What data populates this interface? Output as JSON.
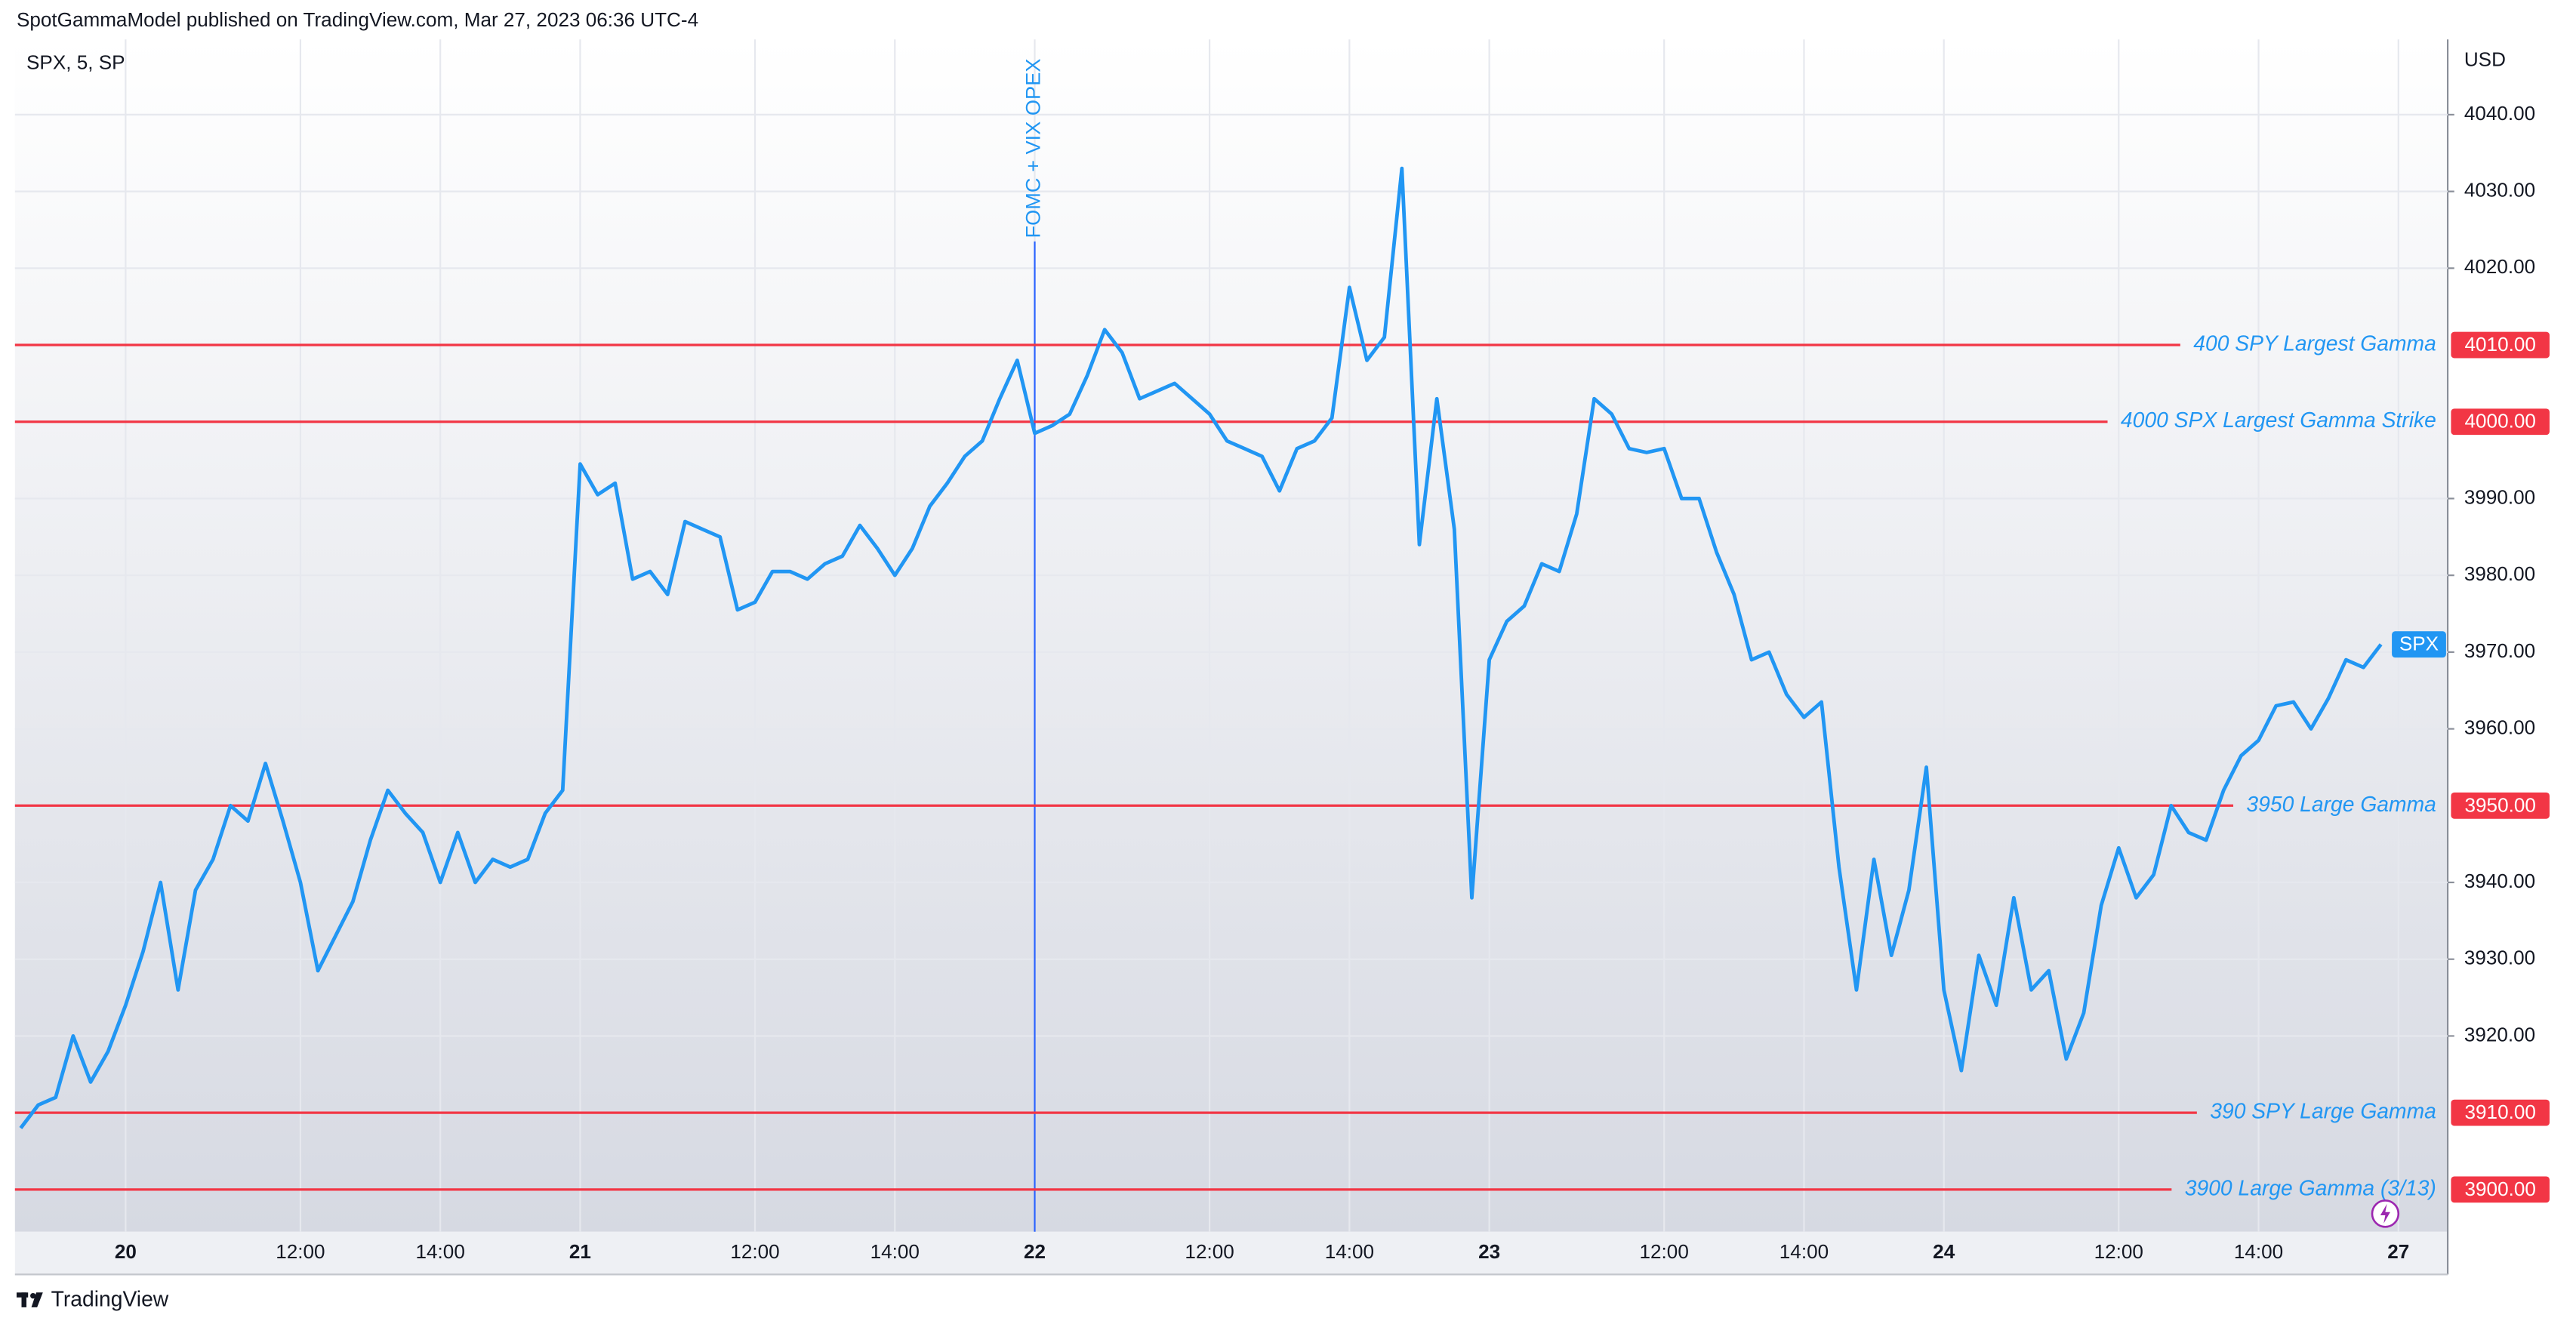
{
  "header": {
    "published": "SpotGammaModel published on TradingView.com, Mar 27, 2023 06:36 UTC-4"
  },
  "footer": {
    "brand": "TradingView"
  },
  "chart_data": {
    "type": "line",
    "title": "SPX, 5, SP",
    "y_unit": "USD",
    "categories": [
      null,
      null,
      null,
      null,
      null,
      null,
      "20",
      null,
      null,
      null,
      null,
      null,
      null,
      null,
      null,
      null,
      "12:00",
      null,
      null,
      null,
      null,
      null,
      null,
      null,
      "14:00",
      null,
      null,
      null,
      null,
      null,
      null,
      null,
      "21",
      null,
      null,
      null,
      null,
      null,
      null,
      null,
      null,
      null,
      "12:00",
      null,
      null,
      null,
      null,
      null,
      null,
      null,
      "14:00",
      null,
      null,
      null,
      null,
      null,
      null,
      null,
      "22",
      null,
      null,
      null,
      null,
      null,
      null,
      null,
      null,
      null,
      "12:00",
      null,
      null,
      null,
      null,
      null,
      null,
      null,
      "14:00",
      null,
      null,
      null,
      null,
      null,
      null,
      null,
      "23",
      null,
      null,
      null,
      null,
      null,
      null,
      null,
      null,
      null,
      "12:00",
      null,
      null,
      null,
      null,
      null,
      null,
      null,
      "14:00",
      null,
      null,
      null,
      null,
      null,
      null,
      null,
      "24",
      null,
      null,
      null,
      null,
      null,
      null,
      null,
      null,
      null,
      "12:00",
      null,
      null,
      null,
      null,
      null,
      null,
      null,
      "14:00",
      null,
      null,
      null,
      null,
      null,
      null,
      null,
      "27"
    ],
    "series": [
      {
        "name": "SPX",
        "color": "#2196f3",
        "values": [
          3908,
          3911,
          3912,
          3920,
          3914,
          3918,
          3924,
          3931,
          3940,
          3926,
          3939,
          3943,
          3950,
          3948,
          3955.5,
          3948,
          3940,
          3928.5,
          3933,
          3937.5,
          3945.5,
          3952,
          3949,
          3946.5,
          3940,
          3946.5,
          3940,
          3943,
          3942,
          3943,
          3949,
          3952,
          3994.5,
          3990.5,
          3992,
          3979.5,
          3980.5,
          3977.5,
          3987,
          3986,
          3985,
          3975.5,
          3976.5,
          3980.5,
          3980.5,
          3979.5,
          3981.5,
          3982.5,
          3986.5,
          3983.5,
          3980,
          3983.5,
          3989,
          3992,
          3995.5,
          3997.5,
          4003,
          4008,
          3998.5,
          3999.5,
          4001,
          4006,
          4012,
          4009,
          4003,
          4004,
          4005,
          4003,
          4001,
          3997.5,
          3996.5,
          3995.5,
          3991,
          3996.5,
          3997.5,
          4000.5,
          4017.5,
          4008,
          4011,
          4033,
          3984,
          4003,
          3986,
          3938,
          3969,
          3974,
          3976,
          3981.5,
          3980.5,
          3988,
          4003,
          4001,
          3996.5,
          3996,
          3996.5,
          3990,
          3990,
          3983,
          3977.5,
          3969,
          3970,
          3964.5,
          3961.5,
          3963.5,
          3942,
          3926,
          3943,
          3930.5,
          3939,
          3955,
          3926,
          3915.5,
          3930.5,
          3924,
          3938,
          3926,
          3928.5,
          3917,
          3923,
          3937,
          3944.5,
          3938,
          3941,
          3950,
          3946.5,
          3945.5,
          3952,
          3956.5,
          3958.5,
          3963,
          3963.5,
          3960,
          3964,
          3969,
          3968,
          3971,
          null
        ]
      }
    ],
    "ylim": [
      3894.5,
      4049.8
    ],
    "yticks": [
      {
        "value": 3920,
        "label": "3920.00"
      },
      {
        "value": 3930,
        "label": "3930.00"
      },
      {
        "value": 3940,
        "label": "3940.00"
      },
      {
        "value": 3960,
        "label": "3960.00"
      },
      {
        "value": 3970,
        "label": "3970.00"
      },
      {
        "value": 3980,
        "label": "3980.00"
      },
      {
        "value": 3990,
        "label": "3990.00"
      },
      {
        "value": 4020,
        "label": "4020.00"
      },
      {
        "value": 4030,
        "label": "4030.00"
      },
      {
        "value": 4040,
        "label": "4040.00"
      }
    ],
    "grid": true,
    "hlines": [
      {
        "value": 4010,
        "value_label": "4010.00",
        "label": "400 SPY Largest Gamma"
      },
      {
        "value": 4000,
        "value_label": "4000.00",
        "label": "4000 SPX Largest Gamma Strike"
      },
      {
        "value": 3950,
        "value_label": "3950.00",
        "label": "3950 Large Gamma"
      },
      {
        "value": 3910,
        "value_label": "3910.00",
        "label": "390 SPY Large Gamma"
      },
      {
        "value": 3900,
        "value_label": "3900.00",
        "label": "3900 Large Gamma (3/13)"
      }
    ],
    "hline_color": "#f23645",
    "event": {
      "x": "22",
      "label": "FOMC + VIX OPEX",
      "color": "#2962ff"
    }
  }
}
